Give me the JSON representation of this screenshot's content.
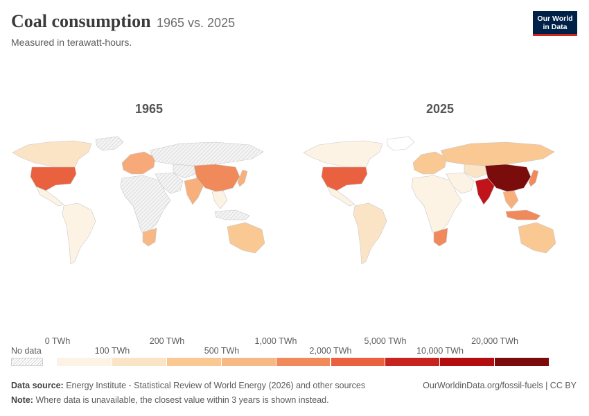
{
  "header": {
    "title": "Coal consumption",
    "subtitle_inline": "1965 vs. 2025",
    "subtitle": "Measured in terawatt-hours.",
    "logo_line1": "Our World",
    "logo_line2": "in Data"
  },
  "maps": [
    {
      "year": "1965",
      "fills": {
        "north-america": "#fbe4c6",
        "greenland": "#e8e8e8",
        "usa": "#e9613f",
        "mexico": "#fdf3e5",
        "south-america": "#fdf3e5",
        "europe": "#f7a979",
        "russia": "#e8e8e8",
        "africa": "#e8e8e8",
        "south-africa": "#f6b986",
        "middle-east": "#e8e8e8",
        "india": "#f7b07b",
        "china": "#f08a5a",
        "japan": "#f7b07b",
        "southeast-asia": "#fdf3e5",
        "indonesia": "#e8e8e8",
        "australia": "#f9c893",
        "central-asia": "#e8e8e8"
      }
    },
    {
      "year": "2025",
      "fills": {
        "north-america": "#fdf3e5",
        "greenland": "#ffffff",
        "usa": "#e9613f",
        "mexico": "#fdf3e5",
        "south-america": "#fbe4c6",
        "europe": "#f9c893",
        "russia": "#f9c893",
        "africa": "#fdf3e5",
        "south-africa": "#f08a5a",
        "middle-east": "#fdf3e5",
        "india": "#c0141a",
        "china": "#7a0c0c",
        "japan": "#f08a5a",
        "southeast-asia": "#f7b07b",
        "indonesia": "#f08a5a",
        "australia": "#f9c893",
        "central-asia": "#fbe4c6"
      }
    }
  ],
  "legend": {
    "no_data_label": "No data",
    "ticks_top": [
      "0 TWh",
      "200 TWh",
      "1,000 TWh",
      "5,000 TWh",
      "20,000 TWh"
    ],
    "ticks_bottom": [
      "100 TWh",
      "500 TWh",
      "2,000 TWh",
      "10,000 TWh"
    ],
    "colors": [
      "#fdf3e5",
      "#fbe4c6",
      "#f9c893",
      "#f6b986",
      "#f08a5a",
      "#e9613f",
      "#c8241f",
      "#b30d10",
      "#7a0c0c"
    ]
  },
  "footer": {
    "source_label": "Data source:",
    "source_text": "Energy Institute - Statistical Review of World Energy (2026) and other sources",
    "url": "OurWorldinData.org/fossil-fuels | CC BY",
    "note_label": "Note:",
    "note_text": "Where data is unavailable, the closest value within 3 years is shown instead."
  }
}
